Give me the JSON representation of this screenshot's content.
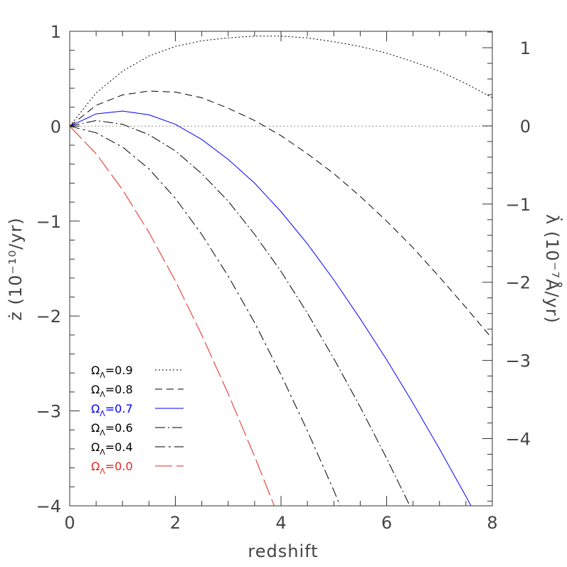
{
  "chart_data": {
    "type": "line",
    "title": "",
    "xlabel": "redshift",
    "ylabel": "ż (10⁻¹⁰/yr)",
    "y2label": "λ̇ (10⁻⁷Å/yr)",
    "xlim": [
      0,
      8
    ],
    "ylim": [
      -4,
      1
    ],
    "y2lim": [
      -4.86,
      1.21
    ],
    "x_ticks": [
      "0",
      "2",
      "4",
      "6",
      "8"
    ],
    "y_ticks": [
      "−4",
      "−3",
      "−2",
      "−1",
      "0",
      "1"
    ],
    "y2_ticks": [
      "−4",
      "−3",
      "−2",
      "−1",
      "0",
      "1"
    ],
    "legend_position": "bottom-left",
    "grid": false,
    "series": [
      {
        "name": "Ω",
        "sub": "Λ",
        "value": "=0.9",
        "color": "#000000",
        "dash": "2,3",
        "x": [
          0,
          0.5,
          1,
          1.5,
          2,
          2.5,
          3,
          3.5,
          4,
          4.5,
          5,
          5.5,
          6,
          6.5,
          7,
          7.5,
          8
        ],
        "y": [
          0,
          0.35,
          0.58,
          0.74,
          0.84,
          0.9,
          0.93,
          0.95,
          0.95,
          0.93,
          0.89,
          0.84,
          0.77,
          0.68,
          0.58,
          0.45,
          0.3
        ]
      },
      {
        "name": "Ω",
        "sub": "Λ",
        "value": "=0.8",
        "color": "#000000",
        "dash": "10,6",
        "x": [
          0,
          0.5,
          1,
          1.5,
          2,
          2.5,
          3,
          3.5,
          4,
          4.5,
          5,
          5.5,
          6,
          6.5,
          7,
          7.5,
          8
        ],
        "y": [
          0,
          0.22,
          0.33,
          0.37,
          0.36,
          0.3,
          0.19,
          0.06,
          -0.1,
          -0.29,
          -0.5,
          -0.74,
          -1.0,
          -1.28,
          -1.59,
          -1.91,
          -2.24
        ]
      },
      {
        "name": "Ω",
        "sub": "Λ",
        "value": "=0.7",
        "color": "#0000ff",
        "dash": "",
        "x": [
          0,
          0.5,
          1,
          1.5,
          2,
          2.5,
          3,
          3.5,
          4,
          4.5,
          5,
          5.5,
          6,
          6.5,
          7,
          7.5,
          8
        ],
        "y": [
          0,
          0.13,
          0.16,
          0.12,
          0.02,
          -0.14,
          -0.35,
          -0.6,
          -0.9,
          -1.24,
          -1.62,
          -2.03,
          -2.46,
          -2.92,
          -3.4,
          -3.9,
          -4.42
        ]
      },
      {
        "name": "Ω",
        "sub": "Λ",
        "value": "=0.6",
        "color": "#000000",
        "dash": "14,4,2,4",
        "x": [
          0,
          0.5,
          1,
          1.5,
          2,
          2.5,
          3,
          3.5,
          4,
          4.5,
          5,
          5.5,
          6,
          6.5,
          7
        ],
        "y": [
          0,
          0.06,
          0.02,
          -0.09,
          -0.26,
          -0.5,
          -0.79,
          -1.14,
          -1.53,
          -1.97,
          -2.45,
          -2.96,
          -3.5,
          -4.07,
          -4.66
        ]
      },
      {
        "name": "Ω",
        "sub": "Λ",
        "value": "=0.4",
        "color": "#000000",
        "dash": "14,5,3,5",
        "x": [
          0,
          0.5,
          1,
          1.5,
          2,
          2.5,
          3,
          3.5,
          4,
          4.5,
          5,
          5.5
        ],
        "y": [
          0,
          -0.07,
          -0.22,
          -0.45,
          -0.76,
          -1.14,
          -1.58,
          -2.07,
          -2.62,
          -3.21,
          -3.84,
          -4.51
        ]
      },
      {
        "name": "Ω",
        "sub": "Λ",
        "value": "=0.0",
        "color": "#e8251b",
        "dash": "24,6",
        "x": [
          0,
          0.5,
          1,
          1.5,
          2,
          2.5,
          3,
          3.5,
          4,
          4.5
        ],
        "y": [
          0,
          -0.29,
          -0.67,
          -1.12,
          -1.63,
          -2.2,
          -2.82,
          -3.48,
          -4.18,
          -4.9
        ]
      }
    ],
    "reference_line": {
      "y": 0,
      "color": "#aaaaaa",
      "dash": "2,3"
    }
  }
}
